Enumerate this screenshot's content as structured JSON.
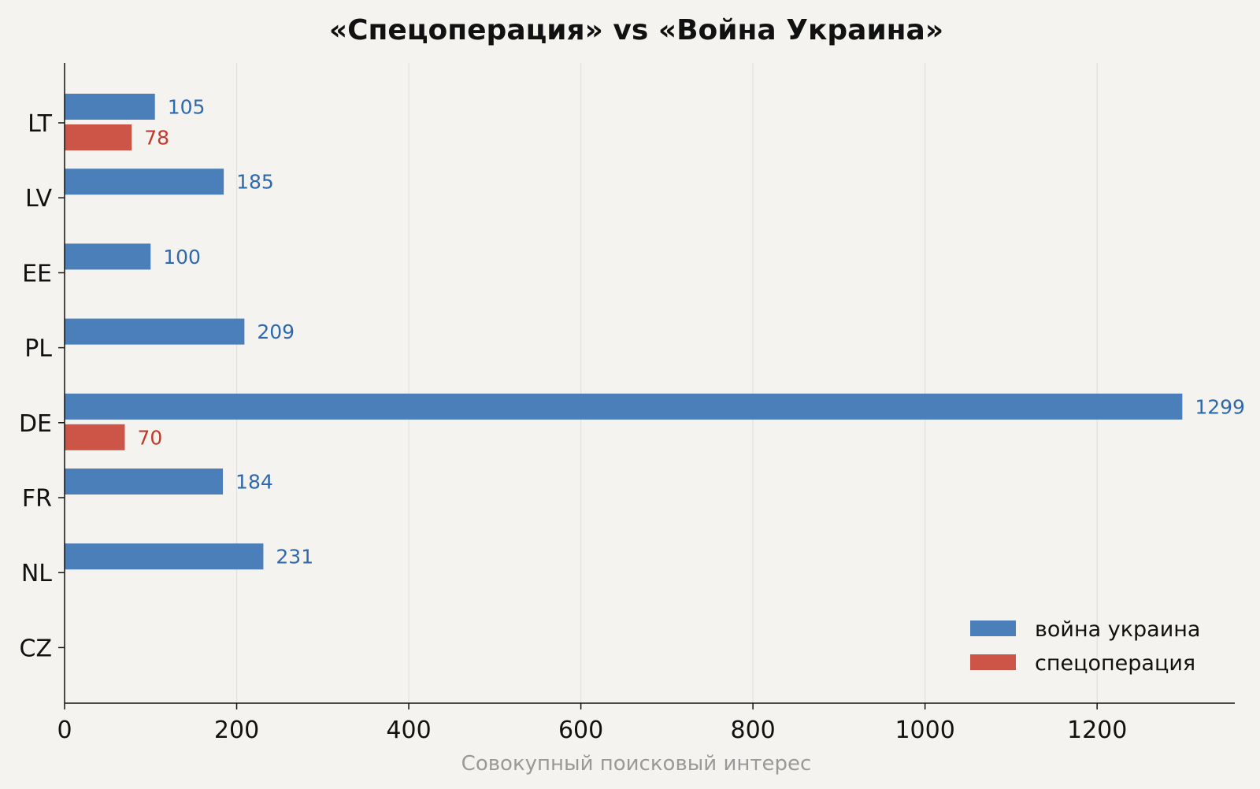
{
  "chart_data": {
    "type": "bar",
    "orientation": "horizontal",
    "title": "«Спецоперация» vs «Война Украина»",
    "xlabel": "Совокупный поисковый интерес",
    "ylabel": "",
    "categories": [
      "LT",
      "LV",
      "EE",
      "PL",
      "DE",
      "FR",
      "NL",
      "CZ"
    ],
    "series": [
      {
        "name": "война украина",
        "color": "#4a7fb9",
        "label_color": "#2e68ad",
        "values": [
          105,
          185,
          100,
          209,
          1299,
          184,
          231,
          null
        ]
      },
      {
        "name": "спецоперация",
        "color": "#cc5547",
        "label_color": "#c0392b",
        "values": [
          78,
          null,
          null,
          null,
          70,
          null,
          null,
          null
        ]
      }
    ],
    "xlim": [
      0,
      1360
    ],
    "xticks": [
      0,
      200,
      400,
      600,
      800,
      1000,
      1200
    ],
    "grid": "vertical",
    "legend": "lower-right"
  }
}
